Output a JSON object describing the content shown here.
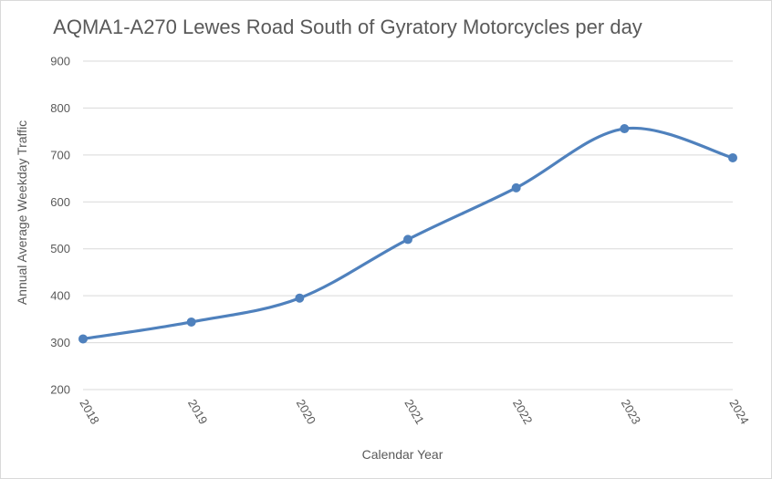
{
  "chart_data": {
    "type": "line",
    "title": "AQMA1-A270 Lewes Road South of Gyratory Motorcycles per day",
    "xlabel": "Calendar Year",
    "ylabel": "Annual Average Weekday Traffic",
    "categories": [
      "2018",
      "2019",
      "2020",
      "2021",
      "2022",
      "2023",
      "2024"
    ],
    "series": [
      {
        "values": [
          308,
          344,
          395,
          520,
          630,
          756,
          694
        ]
      }
    ],
    "ylim": [
      200,
      900
    ],
    "yticks": [
      200,
      300,
      400,
      500,
      600,
      700,
      800,
      900
    ],
    "grid": true,
    "smooth": true,
    "color": "#4f81bd"
  }
}
